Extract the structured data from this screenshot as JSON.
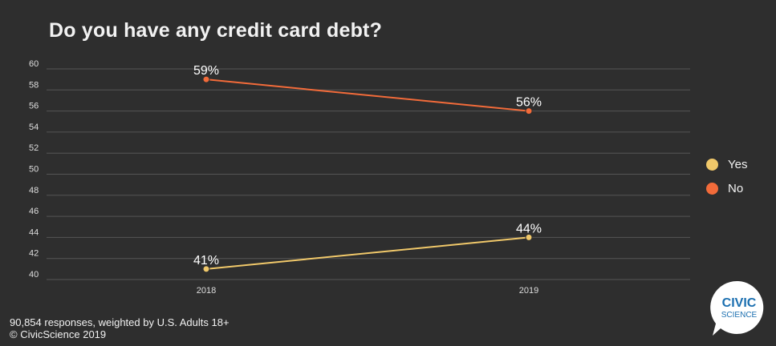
{
  "title": "Do you have any credit card debt?",
  "chart_data": {
    "type": "line",
    "title": "Do you have any credit card debt?",
    "x": [
      "2018",
      "2019"
    ],
    "ylim": [
      40,
      60
    ],
    "yticks": [
      40,
      42,
      44,
      46,
      48,
      50,
      52,
      54,
      56,
      58,
      60
    ],
    "grid": true,
    "legend_position": "right",
    "series": [
      {
        "name": "Yes",
        "values": [
          41,
          44
        ],
        "labels": [
          "41%",
          "44%"
        ],
        "color": "#f0c86a"
      },
      {
        "name": "No",
        "values": [
          59,
          56
        ],
        "labels": [
          "59%",
          "56%"
        ],
        "color": "#f26b3a"
      }
    ]
  },
  "footer": {
    "line1": "90,854 responses, weighted by U.S. Adults 18+",
    "line2": "© CivicScience 2019"
  },
  "logo": {
    "line1": "CIVIC",
    "line2": "SCIENCE",
    "color": "#1b6fb0"
  }
}
